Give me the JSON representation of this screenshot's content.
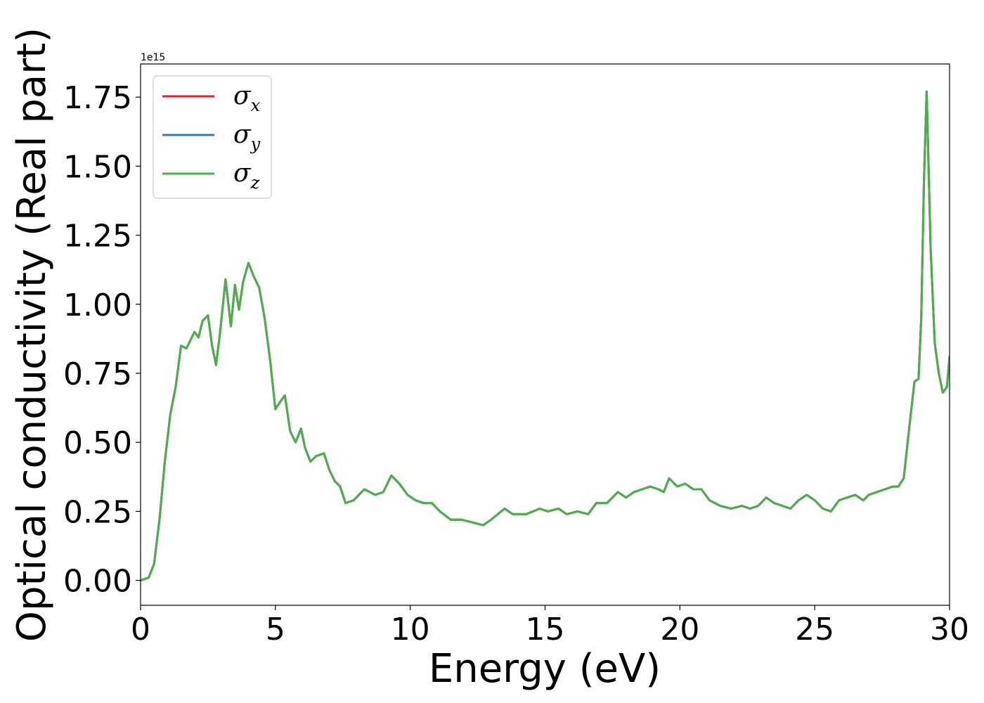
{
  "chart_data": {
    "type": "line",
    "xlabel": "Energy (eV)",
    "ylabel": "Optical conductivity (Real part)",
    "y_offset_label": "1e15",
    "xlim": [
      0,
      30
    ],
    "ylim": [
      -0.09,
      1.87
    ],
    "x_ticks": [
      0,
      5,
      10,
      15,
      20,
      25,
      30
    ],
    "x_tick_labels": [
      "0",
      "5",
      "10",
      "15",
      "20",
      "25",
      "30"
    ],
    "y_ticks": [
      0.0,
      0.25,
      0.5,
      0.75,
      1.0,
      1.25,
      1.5,
      1.75
    ],
    "y_tick_labels": [
      "0.00",
      "0.25",
      "0.50",
      "0.75",
      "1.00",
      "1.25",
      "1.50",
      "1.75"
    ],
    "grid": false,
    "legend_position": "top-left",
    "x": [
      0,
      0.3,
      0.5,
      0.7,
      0.9,
      1.1,
      1.3,
      1.5,
      1.7,
      1.85,
      2.0,
      2.15,
      2.3,
      2.5,
      2.65,
      2.8,
      2.95,
      3.15,
      3.35,
      3.5,
      3.65,
      3.8,
      4.0,
      4.2,
      4.4,
      4.6,
      4.8,
      5.0,
      5.2,
      5.35,
      5.55,
      5.75,
      5.95,
      6.1,
      6.3,
      6.5,
      6.8,
      7.0,
      7.2,
      7.4,
      7.6,
      7.9,
      8.3,
      8.7,
      9.0,
      9.3,
      9.6,
      9.9,
      10.2,
      10.5,
      10.8,
      11.1,
      11.5,
      11.9,
      12.3,
      12.7,
      13.0,
      13.5,
      13.8,
      14.3,
      14.8,
      15.1,
      15.5,
      15.8,
      16.2,
      16.6,
      16.9,
      17.3,
      17.7,
      18.0,
      18.3,
      18.6,
      18.9,
      19.2,
      19.4,
      19.6,
      19.9,
      20.2,
      20.5,
      20.8,
      21.1,
      21.5,
      21.9,
      22.3,
      22.6,
      22.9,
      23.2,
      23.5,
      23.8,
      24.1,
      24.4,
      24.7,
      25.0,
      25.3,
      25.6,
      25.9,
      26.2,
      26.5,
      26.8,
      27.0,
      27.3,
      27.6,
      27.9,
      28.1,
      28.3,
      28.5,
      28.7,
      28.85,
      28.95,
      29.05,
      29.15,
      29.3,
      29.45,
      29.6,
      29.75,
      29.9,
      30.0
    ],
    "series": [
      {
        "name": "σx",
        "color": "#d62728",
        "values": [
          0.0,
          0.01,
          0.06,
          0.22,
          0.43,
          0.6,
          0.7,
          0.85,
          0.84,
          0.87,
          0.9,
          0.88,
          0.94,
          0.96,
          0.85,
          0.78,
          0.9,
          1.09,
          0.92,
          1.07,
          0.98,
          1.08,
          1.15,
          1.1,
          1.06,
          0.95,
          0.8,
          0.62,
          0.65,
          0.67,
          0.54,
          0.5,
          0.55,
          0.48,
          0.43,
          0.45,
          0.46,
          0.4,
          0.36,
          0.34,
          0.28,
          0.29,
          0.33,
          0.31,
          0.32,
          0.38,
          0.35,
          0.31,
          0.29,
          0.28,
          0.28,
          0.25,
          0.22,
          0.22,
          0.21,
          0.2,
          0.22,
          0.26,
          0.24,
          0.24,
          0.26,
          0.25,
          0.26,
          0.24,
          0.25,
          0.24,
          0.28,
          0.28,
          0.32,
          0.3,
          0.32,
          0.33,
          0.34,
          0.33,
          0.32,
          0.37,
          0.34,
          0.35,
          0.33,
          0.33,
          0.29,
          0.27,
          0.26,
          0.27,
          0.26,
          0.27,
          0.3,
          0.28,
          0.27,
          0.26,
          0.29,
          0.31,
          0.29,
          0.26,
          0.25,
          0.29,
          0.3,
          0.31,
          0.29,
          0.31,
          0.32,
          0.33,
          0.34,
          0.34,
          0.37,
          0.55,
          0.72,
          0.73,
          0.95,
          1.45,
          1.77,
          1.2,
          0.86,
          0.75,
          0.68,
          0.7,
          0.81
        ]
      },
      {
        "name": "σy",
        "color": "#377eb8",
        "values": [
          0.0,
          0.01,
          0.06,
          0.22,
          0.43,
          0.6,
          0.7,
          0.85,
          0.84,
          0.87,
          0.9,
          0.88,
          0.94,
          0.96,
          0.85,
          0.78,
          0.9,
          1.09,
          0.92,
          1.07,
          0.98,
          1.08,
          1.15,
          1.1,
          1.06,
          0.95,
          0.8,
          0.62,
          0.65,
          0.67,
          0.54,
          0.5,
          0.55,
          0.48,
          0.43,
          0.45,
          0.46,
          0.4,
          0.36,
          0.34,
          0.28,
          0.29,
          0.33,
          0.31,
          0.32,
          0.38,
          0.35,
          0.31,
          0.29,
          0.28,
          0.28,
          0.25,
          0.22,
          0.22,
          0.21,
          0.2,
          0.22,
          0.26,
          0.24,
          0.24,
          0.26,
          0.25,
          0.26,
          0.24,
          0.25,
          0.24,
          0.28,
          0.28,
          0.32,
          0.3,
          0.32,
          0.33,
          0.34,
          0.33,
          0.32,
          0.37,
          0.34,
          0.35,
          0.33,
          0.33,
          0.29,
          0.27,
          0.26,
          0.27,
          0.26,
          0.27,
          0.3,
          0.28,
          0.27,
          0.26,
          0.29,
          0.31,
          0.29,
          0.26,
          0.25,
          0.29,
          0.3,
          0.31,
          0.29,
          0.31,
          0.32,
          0.33,
          0.34,
          0.34,
          0.37,
          0.55,
          0.72,
          0.73,
          0.95,
          1.45,
          1.77,
          1.2,
          0.86,
          0.75,
          0.68,
          0.7,
          0.81
        ]
      },
      {
        "name": "σz",
        "color": "#4daf4a",
        "values": [
          0.0,
          0.01,
          0.06,
          0.22,
          0.43,
          0.6,
          0.7,
          0.85,
          0.84,
          0.87,
          0.9,
          0.88,
          0.94,
          0.96,
          0.85,
          0.78,
          0.9,
          1.09,
          0.92,
          1.07,
          0.98,
          1.08,
          1.15,
          1.1,
          1.06,
          0.95,
          0.8,
          0.62,
          0.65,
          0.67,
          0.54,
          0.5,
          0.55,
          0.48,
          0.43,
          0.45,
          0.46,
          0.4,
          0.36,
          0.34,
          0.28,
          0.29,
          0.33,
          0.31,
          0.32,
          0.38,
          0.35,
          0.31,
          0.29,
          0.28,
          0.28,
          0.25,
          0.22,
          0.22,
          0.21,
          0.2,
          0.22,
          0.26,
          0.24,
          0.24,
          0.26,
          0.25,
          0.26,
          0.24,
          0.25,
          0.24,
          0.28,
          0.28,
          0.32,
          0.3,
          0.32,
          0.33,
          0.34,
          0.33,
          0.32,
          0.37,
          0.34,
          0.35,
          0.33,
          0.33,
          0.29,
          0.27,
          0.26,
          0.27,
          0.26,
          0.27,
          0.3,
          0.28,
          0.27,
          0.26,
          0.29,
          0.31,
          0.29,
          0.26,
          0.25,
          0.29,
          0.3,
          0.31,
          0.29,
          0.31,
          0.32,
          0.33,
          0.34,
          0.34,
          0.37,
          0.55,
          0.72,
          0.73,
          0.95,
          1.45,
          1.77,
          1.2,
          0.86,
          0.75,
          0.68,
          0.7,
          0.81
        ]
      }
    ],
    "legend": [
      {
        "symbol": "σ",
        "subscript": "x"
      },
      {
        "symbol": "σ",
        "subscript": "y"
      },
      {
        "symbol": "σ",
        "subscript": "z"
      }
    ]
  }
}
